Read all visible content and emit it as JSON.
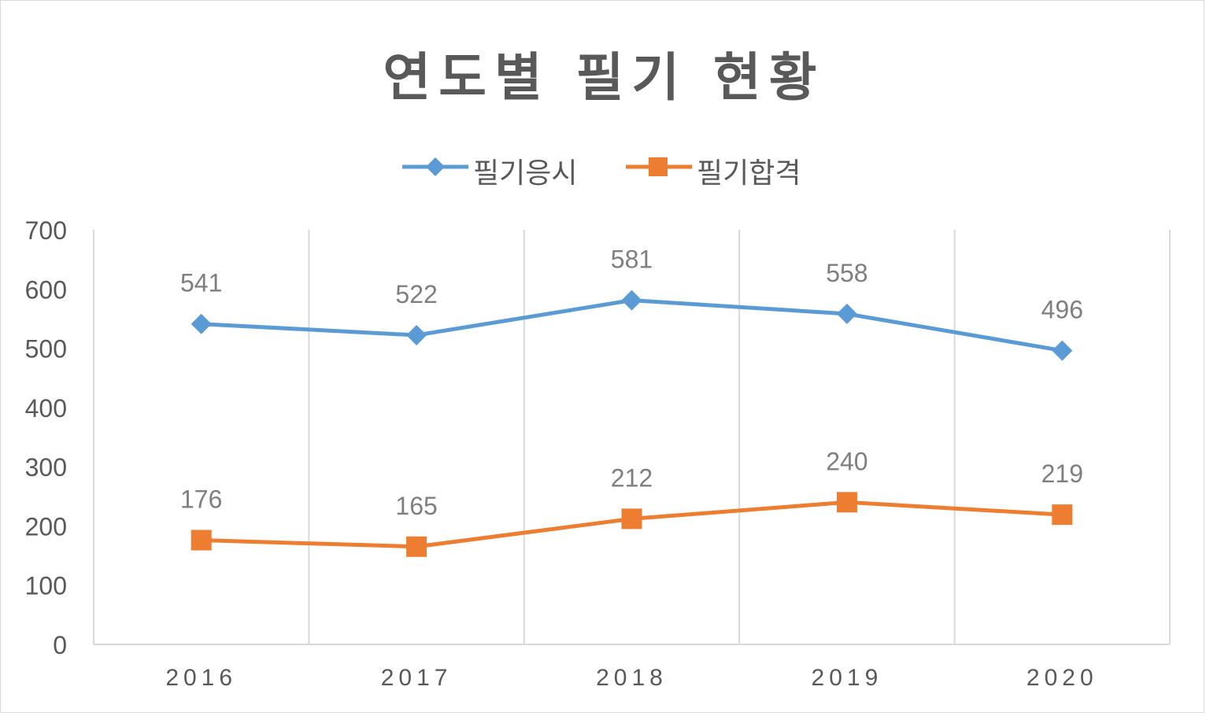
{
  "chart_data": {
    "type": "line",
    "title": "연도별 필기 현황",
    "categories": [
      "2016",
      "2017",
      "2018",
      "2019",
      "2020"
    ],
    "series": [
      {
        "name": "필기응시",
        "values": [
          541,
          522,
          581,
          558,
          496
        ],
        "color": "#5b9bd5",
        "marker": "diamond"
      },
      {
        "name": "필기합격",
        "values": [
          176,
          165,
          212,
          240,
          219
        ],
        "color": "#ed7d31",
        "marker": "square"
      }
    ],
    "ylim": [
      0,
      700
    ],
    "yticks": [
      "0",
      "100",
      "200",
      "300",
      "400",
      "500",
      "600",
      "700"
    ],
    "xlabel": "",
    "ylabel": "",
    "grid": "vertical",
    "legend_position": "top",
    "data_labels": true,
    "text_color": "#595959",
    "label_color": "#7f7f7f"
  }
}
